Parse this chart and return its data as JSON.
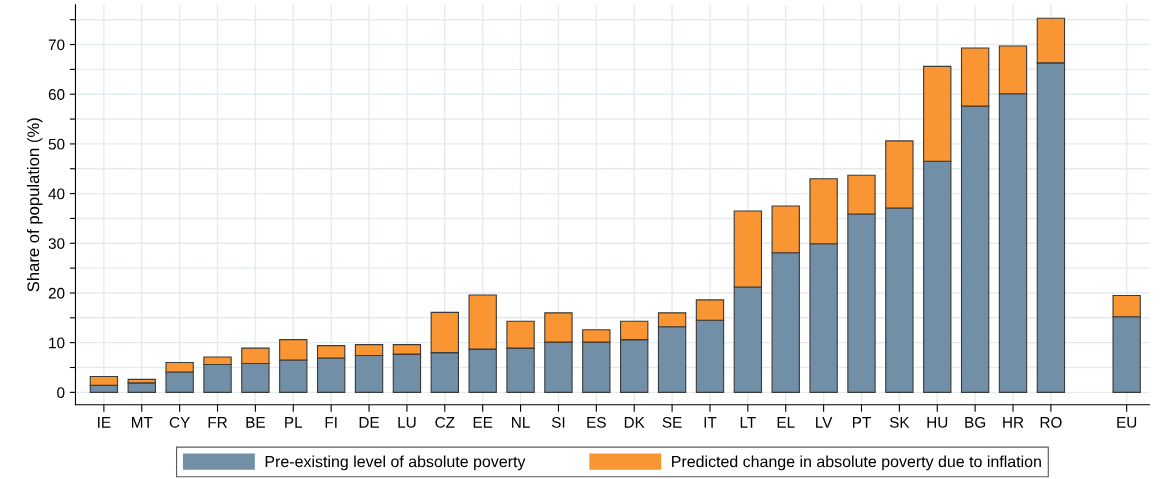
{
  "chart_data": {
    "type": "bar",
    "stacked": true,
    "ylabel": "Share of population (%)",
    "categories": [
      "IE",
      "MT",
      "CY",
      "FR",
      "BE",
      "PL",
      "FI",
      "DE",
      "LU",
      "CZ",
      "EE",
      "NL",
      "SI",
      "ES",
      "DK",
      "SE",
      "IT",
      "LT",
      "EL",
      "LV",
      "PT",
      "SK",
      "HU",
      "BG",
      "HR",
      "RO",
      null,
      "EU"
    ],
    "series": [
      {
        "name": "Pre-existing level of absolute poverty",
        "color": "#7190a8",
        "values": [
          1.4,
          1.9,
          4.1,
          5.6,
          5.8,
          6.5,
          6.9,
          7.4,
          7.7,
          8.0,
          8.7,
          8.9,
          10.1,
          10.1,
          10.6,
          13.2,
          14.5,
          21.2,
          28.1,
          29.9,
          35.9,
          37.1,
          46.5,
          57.6,
          60.1,
          66.3,
          null,
          15.2
        ]
      },
      {
        "name": "Predicted change in absolute poverty due to inflation",
        "color": "#f99532",
        "values": [
          1.8,
          0.7,
          1.9,
          1.5,
          3.1,
          4.1,
          2.5,
          2.2,
          1.9,
          8.1,
          10.9,
          5.4,
          5.9,
          2.5,
          3.7,
          2.8,
          4.1,
          15.3,
          9.4,
          13.1,
          7.8,
          13.5,
          19.1,
          11.7,
          9.6,
          9.0,
          null,
          4.3
        ]
      }
    ],
    "ylim": [
      -2.5,
      78
    ],
    "yticks": [
      0,
      {
        "value": 5,
        "label": null
      },
      10,
      {
        "value": 15,
        "label": null
      },
      20,
      {
        "value": 25,
        "label": null
      },
      30,
      {
        "value": 35,
        "label": null
      },
      40,
      {
        "value": 45,
        "label": null
      },
      50,
      {
        "value": 55,
        "label": null
      },
      60,
      {
        "value": 65,
        "label": null
      },
      70,
      {
        "value": 75,
        "label": null
      }
    ],
    "grid": true,
    "legend": "bottom"
  }
}
